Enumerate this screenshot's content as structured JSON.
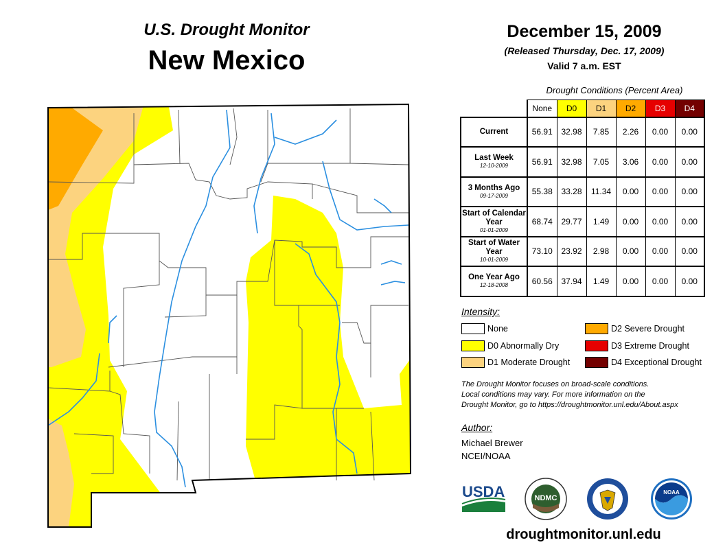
{
  "titles": {
    "monitor": "U.S. Drought Monitor",
    "state": "New Mexico",
    "date": "December 15, 2009",
    "released": "(Released Thursday, Dec. 17, 2009)",
    "valid": "Valid 7 a.m. EST"
  },
  "table": {
    "caption": "Drought Conditions (Percent Area)",
    "columns": [
      "None",
      "D0",
      "D1",
      "D2",
      "D3",
      "D4"
    ],
    "column_colors": [
      "#ffffff",
      "#ffff00",
      "#fcd37f",
      "#ffaa00",
      "#e60000",
      "#730000"
    ],
    "column_text_colors": [
      "#000000",
      "#000000",
      "#000000",
      "#000000",
      "#ffffff",
      "#ffffff"
    ],
    "rows": [
      {
        "label": "Current",
        "date": "",
        "values": [
          "56.91",
          "32.98",
          "7.85",
          "2.26",
          "0.00",
          "0.00"
        ]
      },
      {
        "label": "Last Week",
        "date": "12-10-2009",
        "values": [
          "56.91",
          "32.98",
          "7.05",
          "3.06",
          "0.00",
          "0.00"
        ]
      },
      {
        "label": "3 Months Ago",
        "date": "09-17-2009",
        "values": [
          "55.38",
          "33.28",
          "11.34",
          "0.00",
          "0.00",
          "0.00"
        ]
      },
      {
        "label": "Start of Calendar Year",
        "date": "01-01-2009",
        "values": [
          "68.74",
          "29.77",
          "1.49",
          "0.00",
          "0.00",
          "0.00"
        ]
      },
      {
        "label": "Start of Water Year",
        "date": "10-01-2009",
        "values": [
          "73.10",
          "23.92",
          "2.98",
          "0.00",
          "0.00",
          "0.00"
        ]
      },
      {
        "label": "One Year Ago",
        "date": "12-18-2008",
        "values": [
          "60.56",
          "37.94",
          "1.49",
          "0.00",
          "0.00",
          "0.00"
        ]
      }
    ]
  },
  "legend": {
    "title": "Intensity:",
    "items": [
      {
        "label": "None",
        "color": "#ffffff"
      },
      {
        "label": "D0 Abnormally Dry",
        "color": "#ffff00"
      },
      {
        "label": "D1 Moderate Drought",
        "color": "#fcd37f"
      },
      {
        "label": "D2 Severe Drought",
        "color": "#ffaa00"
      },
      {
        "label": "D3 Extreme Drought",
        "color": "#e60000"
      },
      {
        "label": "D4 Exceptional Drought",
        "color": "#730000"
      }
    ]
  },
  "note": {
    "line1": "The Drought Monitor focuses on broad-scale conditions.",
    "line2": "Local conditions may vary. For more information on the",
    "line3": "Drought Monitor, go to https://droughtmonitor.unl.edu/About.aspx"
  },
  "author": {
    "label": "Author:",
    "name": "Michael Brewer",
    "org": "NCEI/NOAA"
  },
  "logos": {
    "usda": "USDA",
    "ndmc": "NDMC",
    "noaa": "NOAA"
  },
  "website": "droughtmonitor.unl.edu",
  "colors": {
    "none": "#ffffff",
    "d0": "#ffff00",
    "d1": "#fcd37f",
    "d2": "#ffaa00",
    "river": "#2b8fe0"
  }
}
